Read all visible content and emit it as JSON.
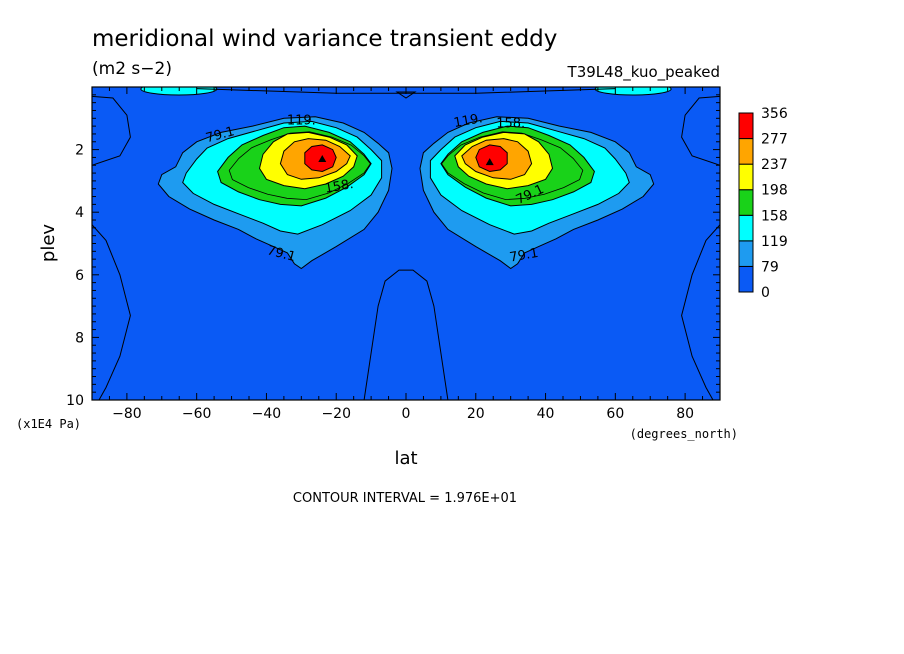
{
  "chart_data": {
    "type": "contour",
    "title": "meridional wind variance transient eddy",
    "units": "(m2 s−2)",
    "run_label": "T39L48_kuo_peaked",
    "xlabel": "lat",
    "xlabel_units": "(degrees_north)",
    "ylabel": "plev",
    "ylabel_units": "(x1E4 Pa)",
    "xlim": [
      -90,
      90
    ],
    "ylim": [
      10,
      0
    ],
    "x_ticks": [
      -80,
      -60,
      -40,
      -20,
      0,
      20,
      40,
      60,
      80
    ],
    "y_ticks": [
      2,
      4,
      6,
      8,
      10
    ],
    "contour_interval_text": "CONTOUR INTERVAL = 1.976E+01",
    "contour_labels": [
      "79.1",
      "119.",
      "158.",
      "79.1",
      "119.",
      "158.",
      "79.1",
      "79.1"
    ],
    "levels": [
      {
        "value": "0",
        "color": "#0a5af5"
      },
      {
        "value": "79",
        "color": "#1e9bf0"
      },
      {
        "value": "119",
        "color": "#00ffff"
      },
      {
        "value": "158",
        "color": "#19d219"
      },
      {
        "value": "198",
        "color": "#ffff00"
      },
      {
        "value": "237",
        "color": "#ffa500"
      },
      {
        "value": "277",
        "color": "#ff0000"
      },
      {
        "value": "356",
        "color": ""
      }
    ],
    "peaks": [
      {
        "lat": -24,
        "plev": 2.3,
        "value": 270
      },
      {
        "lat": 24,
        "plev": 2.4,
        "value": 290
      }
    ]
  }
}
